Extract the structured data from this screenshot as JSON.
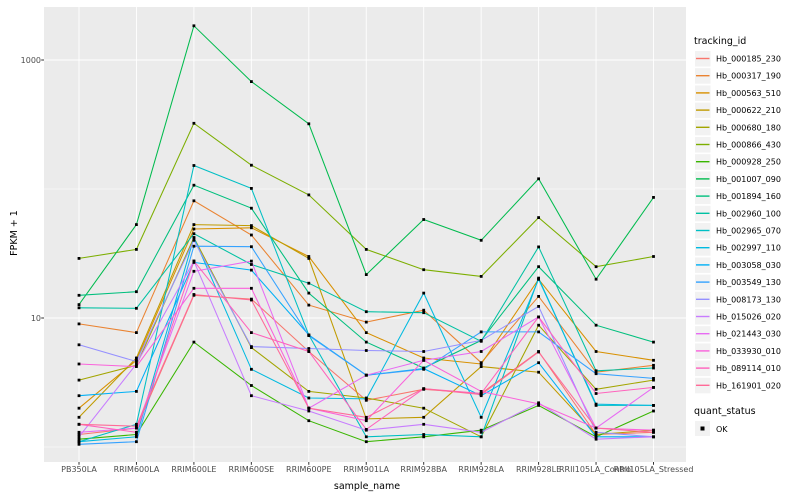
{
  "figure": {
    "y_axis": {
      "label": "FPKM + 1",
      "tick_labels": [
        "1000",
        "10"
      ],
      "tick_values": [
        1000,
        10
      ]
    },
    "x_axis": {
      "label": "sample_name"
    },
    "legend": {
      "title": "tracking_id"
    },
    "quant_legend": {
      "title": "quant_status",
      "item_label": "OK",
      "marker": "black-square-point"
    },
    "colors": {
      "panel_background": "#EBEBEB",
      "gridline": "#FFFFFF",
      "axis_text": "#4D4D4D",
      "point": "#000000",
      "legend_key_background": "#F2F2F2"
    }
  },
  "chart_data": {
    "type": "line",
    "title": "",
    "xlabel": "sample_name",
    "ylabel": "FPKM + 1",
    "y_scale": "log10",
    "ylim": [
      0.8,
      2570
    ],
    "y_major_ticks": [
      10,
      1000
    ],
    "y_minor_gridlines": [
      1,
      100
    ],
    "grid": true,
    "legend_position": "right",
    "point_marker": "black-square",
    "x_categories": [
      "PB350LA",
      "RRIM600LA",
      "RRIM600LE",
      "RRIM600SE",
      "RRIM600PE",
      "RRIM901LA",
      "RRIM928BA",
      "RRIM928LA",
      "RRIM928LE",
      "RRII105LA_Control",
      "RRII105LA_Stressed"
    ],
    "series": [
      {
        "name": "Hb_000185_230",
        "color": "#F8766D",
        "values": [
          1.25,
          1.4,
          15,
          14,
          5.5,
          2.3,
          2.8,
          2.6,
          5.5,
          1.25,
          1.3
        ]
      },
      {
        "name": "Hb_000317_190",
        "color": "#EA8331",
        "values": [
          9,
          7.7,
          81,
          44,
          12.6,
          9.3,
          11.5,
          4.5,
          14.7,
          3.8,
          4.3
        ]
      },
      {
        "name": "Hb_000563_510",
        "color": "#D89000",
        "values": [
          2,
          4.7,
          49,
          50,
          30,
          7.7,
          4.9,
          4.4,
          20,
          5.5,
          4.7
        ]
      },
      {
        "name": "Hb_000622_210",
        "color": "#C09B00",
        "values": [
          1.7,
          4.9,
          53,
          52,
          29,
          1.65,
          1.7,
          4.2,
          3.8,
          1.25,
          1.35
        ]
      },
      {
        "name": "Hb_000680_180",
        "color": "#A3A500",
        "values": [
          3.3,
          4.3,
          42,
          5.9,
          2.7,
          2.4,
          2,
          1.2,
          8.8,
          2.8,
          3.3
        ]
      },
      {
        "name": "Hb_000866_430",
        "color": "#7CAE00",
        "values": [
          29,
          34,
          323,
          153,
          90,
          34,
          23.7,
          21,
          60,
          25,
          30
        ]
      },
      {
        "name": "Hb_000928_250",
        "color": "#39B600",
        "values": [
          1.15,
          1.25,
          6.5,
          3,
          1.6,
          1.1,
          1.2,
          1.35,
          2.1,
          1.2,
          1.9
        ]
      },
      {
        "name": "Hb_001007_090",
        "color": "#00BB4E",
        "values": [
          12.7,
          53,
          1840,
          680,
          320,
          21.7,
          58,
          40,
          120,
          20,
          86
        ]
      },
      {
        "name": "Hb_001894_160",
        "color": "#00BF7D",
        "values": [
          15,
          16,
          107,
          71,
          15.6,
          6.5,
          4.1,
          6.7,
          25,
          8.8,
          6.5
        ]
      },
      {
        "name": "Hb_002960_100",
        "color": "#00C1A3",
        "values": [
          12,
          11.9,
          45,
          26,
          18.6,
          11.2,
          11,
          6.6,
          35.6,
          3.9,
          4.1
        ]
      },
      {
        "name": "Hb_002965_070",
        "color": "#00BFC4",
        "values": [
          1.1,
          1.5,
          152,
          101,
          7.4,
          1.2,
          1.25,
          1.2,
          20.4,
          2.1,
          2.1
        ]
      },
      {
        "name": "Hb_002997_110",
        "color": "#00BAE0",
        "values": [
          1.1,
          1.2,
          42,
          4,
          2.4,
          2.36,
          15.6,
          1.7,
          20,
          2.15,
          2.1
        ]
      },
      {
        "name": "Hb_003058_030",
        "color": "#00B0F6",
        "values": [
          2.5,
          2.7,
          27,
          23.5,
          7.4,
          3.6,
          4.05,
          2.5,
          4.5,
          1.2,
          1.2
        ]
      },
      {
        "name": "Hb_003549_130",
        "color": "#35A2FF",
        "values": [
          1.05,
          1.1,
          36,
          35.7,
          7.3,
          3.6,
          4,
          7.8,
          7.8,
          3.7,
          3.4
        ]
      },
      {
        "name": "Hb_008173_130",
        "color": "#9590FF",
        "values": [
          6.2,
          4.6,
          40,
          6,
          5.8,
          5.6,
          5.5,
          6.7,
          12.3,
          1.3,
          1.2
        ]
      },
      {
        "name": "Hb_015026_020",
        "color": "#C77CFF",
        "values": [
          1.2,
          4.4,
          27.6,
          2.5,
          1.9,
          1.35,
          1.5,
          1.3,
          2.2,
          1.15,
          1.2
        ]
      },
      {
        "name": "Hb_021443_030",
        "color": "#E76BF3",
        "values": [
          1.3,
          1.4,
          23,
          27.6,
          2,
          3.6,
          4.7,
          5.5,
          10.2,
          1.4,
          2.9
        ]
      },
      {
        "name": "Hb_033930_010",
        "color": "#FA62DB",
        "values": [
          4.4,
          4.2,
          17,
          17,
          2,
          1.6,
          4.7,
          2.7,
          2.16,
          1.4,
          1.35
        ]
      },
      {
        "name": "Hb_089114_010",
        "color": "#FF62BC",
        "values": [
          1.5,
          1.3,
          27.6,
          7.7,
          5.5,
          1.37,
          2.83,
          2.6,
          10.2,
          2.6,
          2.9
        ]
      },
      {
        "name": "Hb_161901_020",
        "color": "#FF6A98",
        "values": [
          1.5,
          1.45,
          15.2,
          13.8,
          2,
          1.7,
          2.83,
          2.55,
          5.45,
          1.4,
          1.3
        ]
      }
    ]
  }
}
